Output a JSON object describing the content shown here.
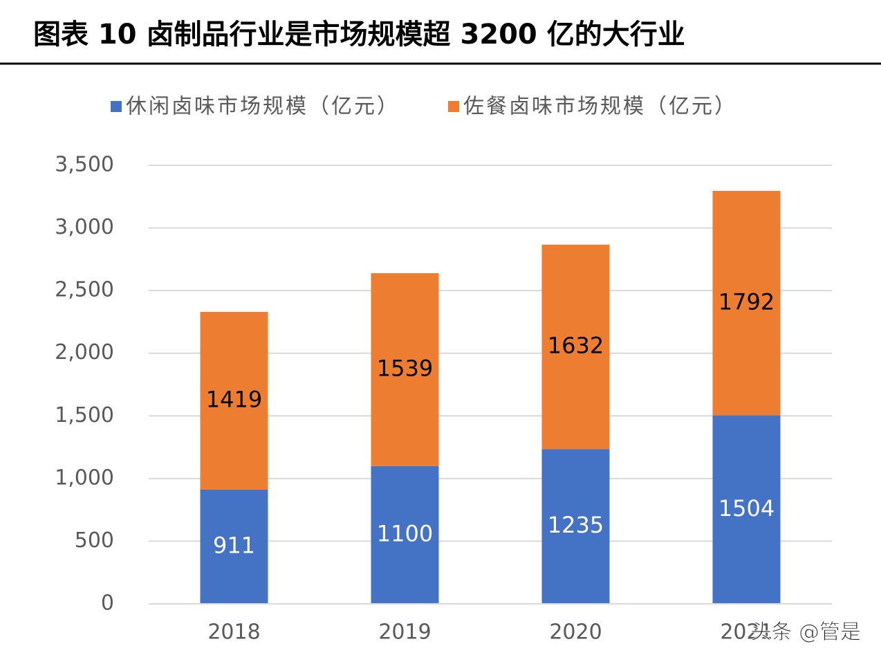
{
  "chart_data": {
    "type": "bar",
    "stacked": true,
    "title": "图表 10  卤制品行业是市场规模超 3200 亿的大行业",
    "categories": [
      "2018",
      "2019",
      "2020",
      "2021"
    ],
    "series": [
      {
        "name": "休闲卤味市场规模（亿元）",
        "color": "#4472c4",
        "label_color": "#ffffff",
        "values": [
          911,
          1100,
          1235,
          1504
        ]
      },
      {
        "name": "佐餐卤味市场规模（亿元）",
        "color": "#ed7d31",
        "label_color": "#000000",
        "values": [
          1419,
          1539,
          1632,
          1792
        ]
      }
    ],
    "ylim": [
      0,
      3500
    ],
    "yticks": [
      0,
      500,
      {
        "value": 1000,
        "label": "1,000"
      },
      {
        "value": 1500,
        "label": "1,500"
      },
      {
        "value": 2000,
        "label": "2,000"
      },
      {
        "value": 2500,
        "label": "2,500"
      },
      {
        "value": 3000,
        "label": "3,000"
      },
      {
        "value": 3500,
        "label": "3,500"
      }
    ],
    "grid": true,
    "legend": "top",
    "watermark": "头条 @管是"
  }
}
